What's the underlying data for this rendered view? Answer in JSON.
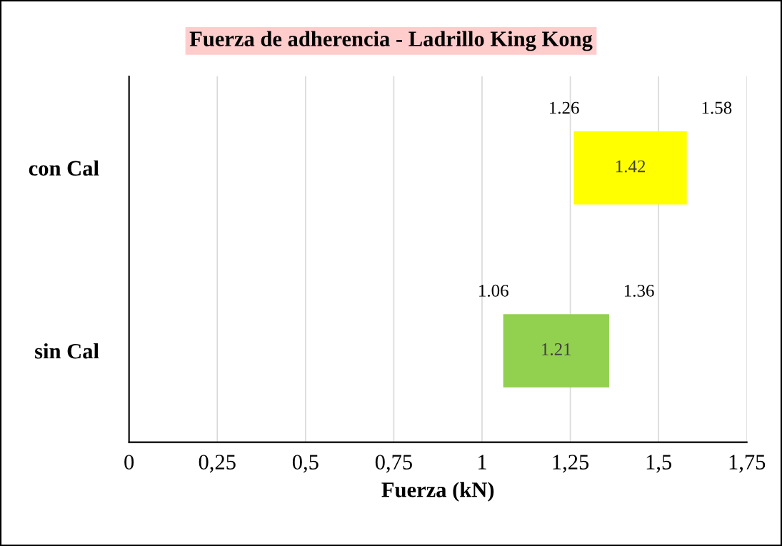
{
  "chart_data": {
    "type": "bar",
    "orientation": "horizontal",
    "title": "Fuerza de adherencia - Ladrillo King Kong",
    "xlabel": "Fuerza (kN)",
    "categories": [
      "con Cal",
      "sin Cal"
    ],
    "series": [
      {
        "colors": [
          "#ffff00",
          "#92d050"
        ],
        "base": [
          1.26,
          1.06
        ],
        "values": [
          0.32,
          0.3
        ]
      }
    ],
    "xlim": [
      0,
      1.75
    ],
    "xticks": [
      0,
      {
        "value": 0.25,
        "label": "0,25"
      },
      {
        "value": 0.5,
        "label": "0,5"
      },
      {
        "value": 0.75,
        "label": "0,75"
      },
      1,
      {
        "value": 1.25,
        "label": "1,25"
      },
      {
        "value": 1.5,
        "label": "1,5"
      },
      {
        "value": 1.75,
        "label": "1,75"
      }
    ],
    "grid": "x",
    "annotations": [
      "1.26",
      "1.58",
      "1.42",
      "1.06",
      "1.36",
      "1.21"
    ]
  }
}
